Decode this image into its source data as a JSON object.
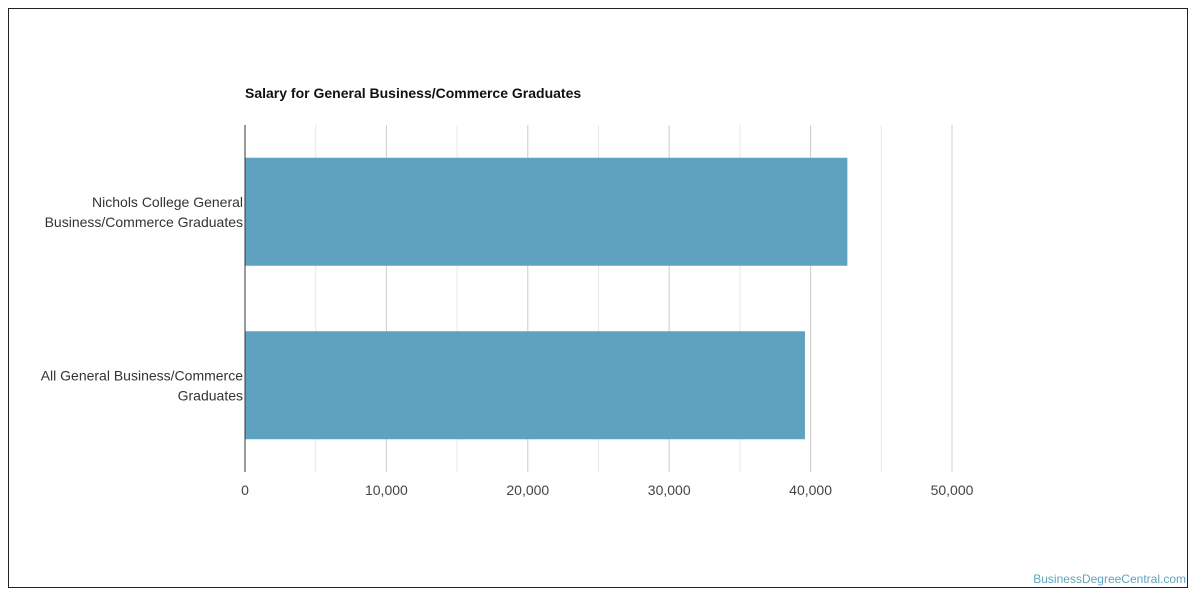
{
  "chart_data": {
    "type": "bar",
    "orientation": "horizontal",
    "title": "Salary for General Business/Commerce Graduates",
    "categories": [
      [
        "Nichols College General",
        "Business/Commerce Graduates"
      ],
      [
        "All General Business/Commerce",
        "Graduates"
      ]
    ],
    "values": [
      42600,
      39600
    ],
    "xlim": [
      0,
      50000
    ],
    "xticks": [
      0,
      10000,
      20000,
      30000,
      40000,
      50000
    ],
    "xtick_labels": [
      "0",
      "10,000",
      "20,000",
      "30,000",
      "40,000",
      "50,000"
    ],
    "xlabel": "",
    "ylabel": "",
    "grid": true,
    "bar_color": "#5fa2bf"
  },
  "watermark": "BusinessDegreeCentral.com"
}
